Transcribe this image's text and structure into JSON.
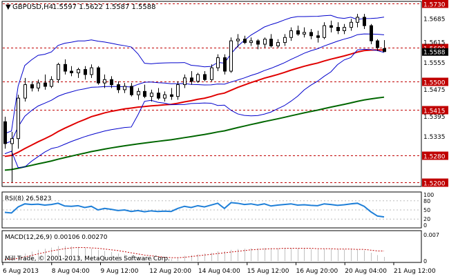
{
  "window": {
    "title": "GBPUSD,H4",
    "ohlc": "1.5597 1.5622 1.5587 1.5588",
    "watermark": "Mill Trade, © 2001-2013, MetaQuotes Software Corp."
  },
  "price_panel": {
    "y_axis_labels": [
      "1.5730",
      "1.5685",
      "1.5615",
      "1.5555",
      "1.5475",
      "1.5395",
      "1.5335",
      "1.5200"
    ],
    "level_lines": [
      {
        "label": "1.5730",
        "value": 1.573,
        "color": "#c00000"
      },
      {
        "label": "1.5600",
        "value": 1.56,
        "color": "#c00000"
      },
      {
        "label": "1.5500",
        "value": 1.55,
        "color": "#c00000"
      },
      {
        "label": "1.5415",
        "value": 1.5415,
        "color": "#c00000"
      },
      {
        "label": "1.5280",
        "value": 1.528,
        "color": "#c00000"
      },
      {
        "label": "1.5200",
        "value": 1.52,
        "color": "#c00000"
      }
    ],
    "current_price_label": "1.5588",
    "colors": {
      "bollinger": "#0000cc",
      "ma_fast": "#e00000",
      "ma_slow": "#006600",
      "candle": "#000000"
    }
  },
  "rsi_panel": {
    "title": "RSI(8) 26.5823",
    "y_axis_labels": [
      "100",
      "80",
      "50",
      "20",
      "0"
    ],
    "color": "#1e7fd8"
  },
  "macd_panel": {
    "title": "MACD(12,26,9) 0.00106 0.00270",
    "y_axis_labels": [
      "0.007",
      "0"
    ],
    "signal_color": "#c00000"
  },
  "x_axis": {
    "labels": [
      "6 Aug 2013",
      "8 Aug 04:00",
      "9 Aug 12:00",
      "12 Aug 20:00",
      "14 Aug 04:00",
      "15 Aug 12:00",
      "16 Aug 20:00",
      "20 Aug 04:00",
      "21 Aug 12:00"
    ]
  },
  "chart_data": {
    "type": "candlestick",
    "symbol": "GBPUSD",
    "timeframe": "H4",
    "ylim": [
      1.519,
      1.5735
    ],
    "candles": [
      {
        "o": 1.538,
        "h": 1.5395,
        "l": 1.53,
        "c": 1.5315
      },
      {
        "o": 1.5315,
        "h": 1.535,
        "l": 1.52,
        "c": 1.533
      },
      {
        "o": 1.533,
        "h": 1.546,
        "l": 1.53,
        "c": 1.545
      },
      {
        "o": 1.545,
        "h": 1.551,
        "l": 1.544,
        "c": 1.549
      },
      {
        "o": 1.549,
        "h": 1.55,
        "l": 1.547,
        "c": 1.548
      },
      {
        "o": 1.548,
        "h": 1.5505,
        "l": 1.547,
        "c": 1.5495
      },
      {
        "o": 1.5495,
        "h": 1.552,
        "l": 1.5475,
        "c": 1.5485
      },
      {
        "o": 1.5485,
        "h": 1.5515,
        "l": 1.548,
        "c": 1.5505
      },
      {
        "o": 1.5505,
        "h": 1.5555,
        "l": 1.5495,
        "c": 1.555
      },
      {
        "o": 1.555,
        "h": 1.5565,
        "l": 1.552,
        "c": 1.553
      },
      {
        "o": 1.553,
        "h": 1.5545,
        "l": 1.5515,
        "c": 1.5525
      },
      {
        "o": 1.5525,
        "h": 1.554,
        "l": 1.551,
        "c": 1.5535
      },
      {
        "o": 1.5535,
        "h": 1.5545,
        "l": 1.5505,
        "c": 1.552
      },
      {
        "o": 1.552,
        "h": 1.555,
        "l": 1.551,
        "c": 1.554
      },
      {
        "o": 1.554,
        "h": 1.5545,
        "l": 1.549,
        "c": 1.5495
      },
      {
        "o": 1.5495,
        "h": 1.552,
        "l": 1.548,
        "c": 1.5505
      },
      {
        "o": 1.5505,
        "h": 1.5515,
        "l": 1.548,
        "c": 1.549
      },
      {
        "o": 1.549,
        "h": 1.55,
        "l": 1.5465,
        "c": 1.5475
      },
      {
        "o": 1.5475,
        "h": 1.5495,
        "l": 1.5465,
        "c": 1.5485
      },
      {
        "o": 1.5485,
        "h": 1.5495,
        "l": 1.5455,
        "c": 1.546
      },
      {
        "o": 1.546,
        "h": 1.548,
        "l": 1.5445,
        "c": 1.547
      },
      {
        "o": 1.547,
        "h": 1.549,
        "l": 1.545,
        "c": 1.5455
      },
      {
        "o": 1.5455,
        "h": 1.5475,
        "l": 1.544,
        "c": 1.5465
      },
      {
        "o": 1.5465,
        "h": 1.548,
        "l": 1.5445,
        "c": 1.545
      },
      {
        "o": 1.545,
        "h": 1.547,
        "l": 1.544,
        "c": 1.546
      },
      {
        "o": 1.546,
        "h": 1.548,
        "l": 1.5445,
        "c": 1.5455
      },
      {
        "o": 1.5455,
        "h": 1.55,
        "l": 1.5445,
        "c": 1.549
      },
      {
        "o": 1.549,
        "h": 1.552,
        "l": 1.548,
        "c": 1.551
      },
      {
        "o": 1.551,
        "h": 1.553,
        "l": 1.549,
        "c": 1.55
      },
      {
        "o": 1.55,
        "h": 1.5525,
        "l": 1.5495,
        "c": 1.552
      },
      {
        "o": 1.552,
        "h": 1.553,
        "l": 1.55,
        "c": 1.5505
      },
      {
        "o": 1.5505,
        "h": 1.555,
        "l": 1.55,
        "c": 1.554
      },
      {
        "o": 1.554,
        "h": 1.558,
        "l": 1.553,
        "c": 1.557
      },
      {
        "o": 1.557,
        "h": 1.558,
        "l": 1.552,
        "c": 1.553
      },
      {
        "o": 1.553,
        "h": 1.563,
        "l": 1.5525,
        "c": 1.562
      },
      {
        "o": 1.562,
        "h": 1.564,
        "l": 1.56,
        "c": 1.5625
      },
      {
        "o": 1.5625,
        "h": 1.5635,
        "l": 1.561,
        "c": 1.5615
      },
      {
        "o": 1.5615,
        "h": 1.563,
        "l": 1.5605,
        "c": 1.562
      },
      {
        "o": 1.562,
        "h": 1.5625,
        "l": 1.5595,
        "c": 1.561
      },
      {
        "o": 1.561,
        "h": 1.563,
        "l": 1.56,
        "c": 1.5625
      },
      {
        "o": 1.5625,
        "h": 1.564,
        "l": 1.56,
        "c": 1.5605
      },
      {
        "o": 1.5605,
        "h": 1.5625,
        "l": 1.56,
        "c": 1.5615
      },
      {
        "o": 1.5615,
        "h": 1.564,
        "l": 1.5605,
        "c": 1.563
      },
      {
        "o": 1.563,
        "h": 1.566,
        "l": 1.562,
        "c": 1.565
      },
      {
        "o": 1.565,
        "h": 1.5665,
        "l": 1.5635,
        "c": 1.564
      },
      {
        "o": 1.564,
        "h": 1.566,
        "l": 1.563,
        "c": 1.5645
      },
      {
        "o": 1.5645,
        "h": 1.5655,
        "l": 1.5625,
        "c": 1.5635
      },
      {
        "o": 1.5635,
        "h": 1.565,
        "l": 1.5615,
        "c": 1.563
      },
      {
        "o": 1.563,
        "h": 1.5675,
        "l": 1.5625,
        "c": 1.5665
      },
      {
        "o": 1.5665,
        "h": 1.568,
        "l": 1.5645,
        "c": 1.566
      },
      {
        "o": 1.566,
        "h": 1.5675,
        "l": 1.564,
        "c": 1.565
      },
      {
        "o": 1.565,
        "h": 1.567,
        "l": 1.564,
        "c": 1.566
      },
      {
        "o": 1.566,
        "h": 1.5685,
        "l": 1.565,
        "c": 1.5675
      },
      {
        "o": 1.5675,
        "h": 1.57,
        "l": 1.566,
        "c": 1.569
      },
      {
        "o": 1.569,
        "h": 1.57,
        "l": 1.5655,
        "c": 1.5665
      },
      {
        "o": 1.5665,
        "h": 1.567,
        "l": 1.561,
        "c": 1.562
      },
      {
        "o": 1.562,
        "h": 1.5625,
        "l": 1.559,
        "c": 1.56
      },
      {
        "o": 1.5597,
        "h": 1.5622,
        "l": 1.5587,
        "c": 1.5588
      }
    ],
    "rsi_values": [
      42,
      40,
      60,
      70,
      68,
      69,
      66,
      68,
      72,
      63,
      62,
      64,
      58,
      62,
      50,
      55,
      52,
      48,
      50,
      45,
      48,
      44,
      47,
      45,
      46,
      45,
      55,
      62,
      58,
      64,
      60,
      66,
      72,
      55,
      74,
      72,
      68,
      70,
      66,
      70,
      63,
      66,
      68,
      70,
      66,
      67,
      65,
      64,
      70,
      68,
      65,
      67,
      70,
      72,
      62,
      44,
      30,
      27
    ],
    "macd_hist": [
      0.0008,
      0.0008,
      0.0012,
      0.002,
      0.0025,
      0.003,
      0.0033,
      0.0036,
      0.004,
      0.004,
      0.0039,
      0.0038,
      0.0035,
      0.0033,
      0.003,
      0.0027,
      0.0024,
      0.002,
      0.0017,
      0.0014,
      0.0011,
      0.0009,
      0.0007,
      0.0006,
      0.0005,
      0.0006,
      0.001,
      0.0014,
      0.0016,
      0.0018,
      0.002,
      0.0022,
      0.0026,
      0.0026,
      0.003,
      0.0032,
      0.0033,
      0.0034,
      0.0034,
      0.0035,
      0.0034,
      0.0034,
      0.0035,
      0.0035,
      0.0034,
      0.0033,
      0.0032,
      0.0031,
      0.0032,
      0.0032,
      0.0031,
      0.0031,
      0.0031,
      0.0031,
      0.0028,
      0.0022,
      0.0016,
      0.0011
    ],
    "macd_signal": [
      0.0004,
      0.0005,
      0.0007,
      0.0011,
      0.0015,
      0.0019,
      0.0023,
      0.0027,
      0.003,
      0.0033,
      0.0035,
      0.0036,
      0.0036,
      0.0035,
      0.0034,
      0.0032,
      0.003,
      0.0028,
      0.0025,
      0.0022,
      0.0019,
      0.0016,
      0.0014,
      0.0012,
      0.001,
      0.0009,
      0.0009,
      0.001,
      0.0012,
      0.0014,
      0.0016,
      0.0018,
      0.002,
      0.0022,
      0.0024,
      0.0026,
      0.0028,
      0.003,
      0.0031,
      0.0032,
      0.0033,
      0.0033,
      0.0034,
      0.0034,
      0.0034,
      0.0034,
      0.0034,
      0.0033,
      0.0033,
      0.0033,
      0.0032,
      0.0032,
      0.0032,
      0.0031,
      0.0031,
      0.0029,
      0.0027,
      0.0027
    ]
  }
}
